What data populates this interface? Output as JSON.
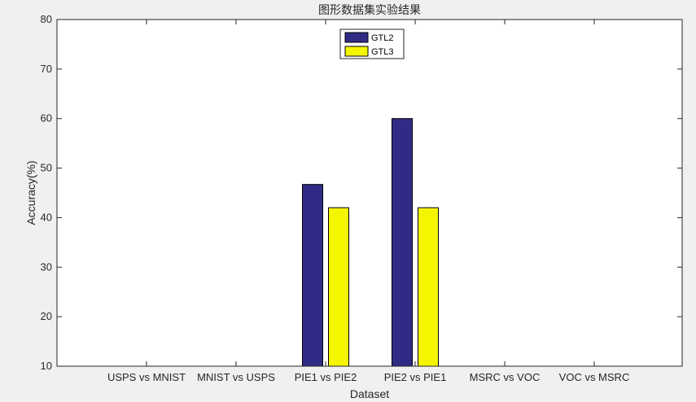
{
  "colors": {
    "figure_background": "#f0f0f0",
    "axes_background": "#ffffff",
    "axis_color": "#262626",
    "series_gtl2": "#302c85",
    "series_gtl3": "#f5f500",
    "bar_edge": "#000000"
  },
  "chart_data": {
    "type": "bar",
    "title": "图形数据集实验结果",
    "xlabel": "Dataset",
    "ylabel": "Accuracy(%)",
    "ylim": [
      10,
      80
    ],
    "yticks": [
      10,
      20,
      30,
      40,
      50,
      60,
      70,
      80
    ],
    "grid": false,
    "legend_position": "top-center",
    "categories": [
      "USPS vs MNIST",
      "MNIST vs USPS",
      "PIE1 vs PIE2",
      "PIE2 vs PIE1",
      "MSRC vs VOC",
      "VOC vs MSRC"
    ],
    "series": [
      {
        "name": "GTL2",
        "color": "#302c85",
        "values": [
          null,
          null,
          46.7,
          60.0,
          null,
          null
        ]
      },
      {
        "name": "GTL3",
        "color": "#f5f500",
        "values": [
          null,
          null,
          42.0,
          42.0,
          null,
          null
        ]
      }
    ]
  }
}
